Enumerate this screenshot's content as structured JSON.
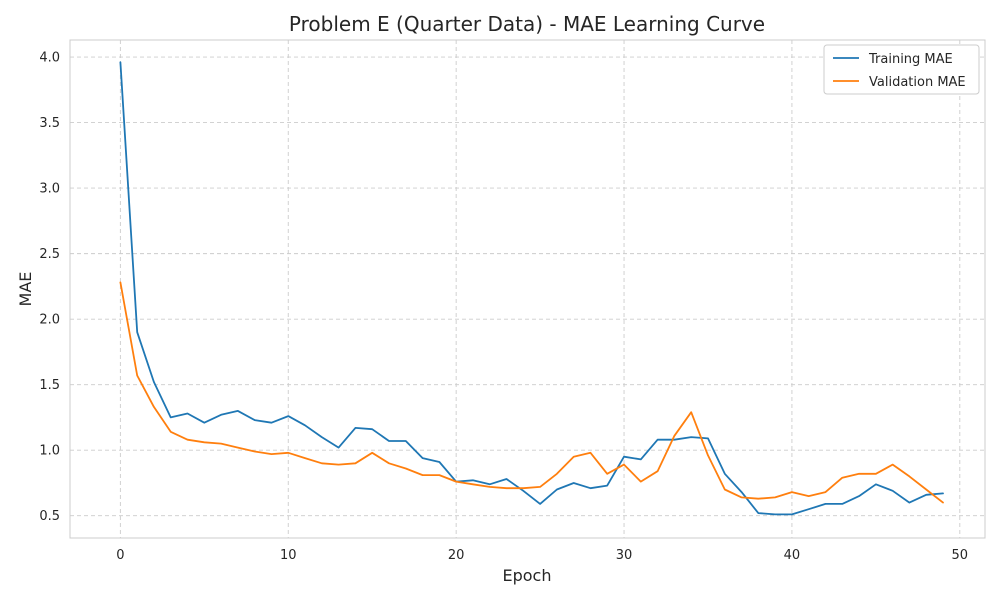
{
  "chart_data": {
    "type": "line",
    "title": "Problem E (Quarter Data) - MAE Learning Curve",
    "xlabel": "Epoch",
    "ylabel": "MAE",
    "xlim": [
      -3,
      51.5
    ],
    "ylim": [
      0.33,
      4.13
    ],
    "xticks": [
      0,
      10,
      20,
      30,
      40,
      50
    ],
    "yticks": [
      0.5,
      1.0,
      1.5,
      2.0,
      2.5,
      3.0,
      3.5,
      4.0
    ],
    "ytick_labels": [
      "0.5",
      "1.0",
      "1.5",
      "2.0",
      "2.5",
      "3.0",
      "3.5",
      "4.0"
    ],
    "grid": true,
    "legend_position": "top-right",
    "x": [
      0,
      1,
      2,
      3,
      4,
      5,
      6,
      7,
      8,
      9,
      10,
      11,
      12,
      13,
      14,
      15,
      16,
      17,
      18,
      19,
      20,
      21,
      22,
      23,
      24,
      25,
      26,
      27,
      28,
      29,
      30,
      31,
      32,
      33,
      34,
      35,
      36,
      37,
      38,
      39,
      40,
      41,
      42,
      43,
      44,
      45,
      46,
      47,
      48,
      49
    ],
    "series": [
      {
        "name": "Training MAE",
        "color": "#1f77b4",
        "values": [
          3.96,
          1.9,
          1.52,
          1.25,
          1.28,
          1.21,
          1.27,
          1.3,
          1.23,
          1.21,
          1.26,
          1.19,
          1.1,
          1.02,
          1.17,
          1.16,
          1.07,
          1.07,
          0.94,
          0.91,
          0.76,
          0.77,
          0.74,
          0.78,
          0.69,
          0.59,
          0.7,
          0.75,
          0.71,
          0.73,
          0.95,
          0.93,
          1.08,
          1.08,
          1.1,
          1.09,
          0.82,
          0.68,
          0.52,
          0.51,
          0.51,
          0.55,
          0.59,
          0.59,
          0.65,
          0.74,
          0.69,
          0.6,
          0.66,
          0.67
        ]
      },
      {
        "name": "Validation MAE",
        "color": "#ff7f0e",
        "values": [
          2.28,
          1.57,
          1.33,
          1.14,
          1.08,
          1.06,
          1.05,
          1.02,
          0.99,
          0.97,
          0.98,
          0.94,
          0.9,
          0.89,
          0.9,
          0.98,
          0.9,
          0.86,
          0.81,
          0.81,
          0.76,
          0.74,
          0.72,
          0.71,
          0.71,
          0.72,
          0.82,
          0.95,
          0.98,
          0.82,
          0.89,
          0.76,
          0.84,
          1.11,
          1.29,
          0.96,
          0.7,
          0.64,
          0.63,
          0.64,
          0.68,
          0.65,
          0.68,
          0.79,
          0.82,
          0.82,
          0.89,
          0.8,
          0.7,
          0.6
        ]
      }
    ]
  }
}
